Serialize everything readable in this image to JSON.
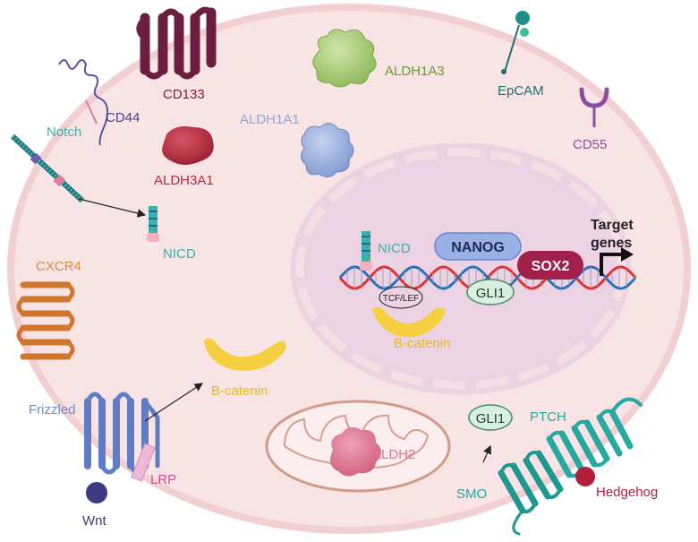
{
  "labels": {
    "cd133": "CD133",
    "cd44": "CD44",
    "aldh1a3": "ALDH1A3",
    "epcam": "EpCAM",
    "aldh1a1": "ALDH1A1",
    "cd55": "CD55",
    "notch": "Notch",
    "aldh3a1": "ALDH3A1",
    "nicd_cyto": "NICD",
    "nicd_nuc": "NICD",
    "nanog": "NANOG",
    "target_genes_1": "Target",
    "target_genes_2": "genes",
    "sox2": "SOX2",
    "gli1_nuc": "GLI1",
    "tcf_lef": "TCF/LEF",
    "bcatenin_nuc": "B-catenin",
    "cxcr4": "CXCR4",
    "bcatenin_cyto": "B-catenin",
    "frizzled": "Frizzled",
    "lrp": "LRP",
    "wnt": "Wnt",
    "aldh2": "ALDH2",
    "gli1_cyto": "GLI1",
    "ptch": "PTCH",
    "smo": "SMO",
    "hedgehog": "Hedgehog"
  },
  "colors": {
    "cell_fill": "#f8e4e5",
    "cell_border": "#f0c9cb",
    "nucleus_fill": "#ecd3e3",
    "cd133": "#6b1e3f",
    "cd44": "#5b4fa0",
    "aldh1a3": "#8fb85a",
    "epcam": "#1f6e6a",
    "aldh1a1": "#8fa6d6",
    "cd55": "#8a4fa0",
    "notch": "#39b3a8",
    "aldh3a1": "#b52a3a",
    "nicd": "#39b3a8",
    "nanog": "#5d6fc0",
    "sox2": "#b0234e",
    "gli1": "#2f6b50",
    "bcatenin": "#e8b820",
    "cxcr4": "#e08a40",
    "frizzled": "#6d8ad0",
    "lrp": "#d04aa0",
    "wnt": "#3c3a80",
    "aldh2": "#e07090",
    "ptch": "#27a8a0",
    "smo": "#27a8a0",
    "hedgehog": "#b0203a",
    "dna_red": "#e03030",
    "dna_blue": "#2a70b8"
  }
}
